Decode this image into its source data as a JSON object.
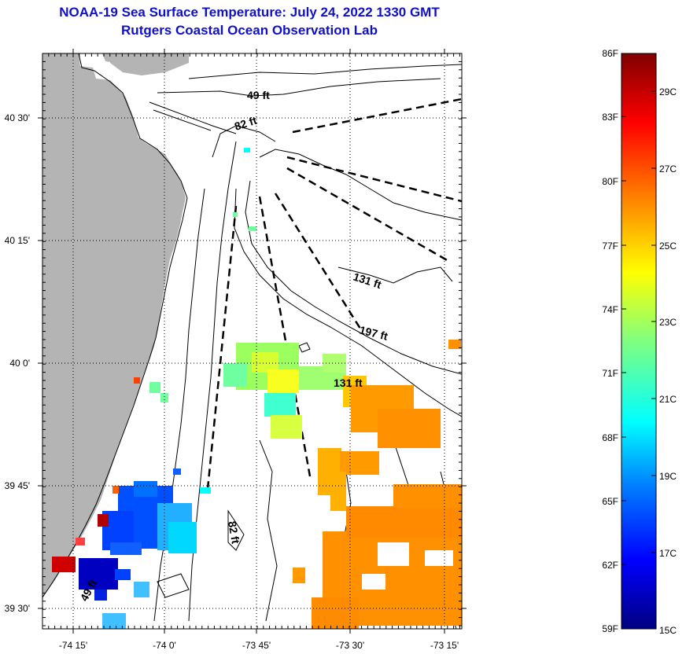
{
  "title": {
    "line1": "NOAA-19 Sea Surface Temperature:  July 24, 2022 1330 GMT",
    "line2": "Rutgers Coastal Ocean Observation Lab"
  },
  "map": {
    "lon_ticks": [
      "-74 15'",
      "-74 0'",
      "-73 45'",
      "-73 30'",
      "-73 15'"
    ],
    "lat_ticks": [
      "40 30'",
      "40 15'",
      "40 0'",
      "39 45'",
      "39 30'"
    ],
    "depth_labels": [
      "49 ft",
      "82 ft",
      "131 ft",
      "197 ft",
      "131 ft",
      "82 ft",
      "49 ft"
    ],
    "colors": {
      "land": "#b4b4b4",
      "water": "#ffffff",
      "coast": "#000000",
      "grid": "#000000"
    }
  },
  "colorbar": {
    "f_labels": [
      "86F",
      "83F",
      "80F",
      "77F",
      "74F",
      "71F",
      "68F",
      "65F",
      "62F",
      "59F"
    ],
    "c_labels": [
      "29C",
      "27C",
      "25C",
      "23C",
      "21C",
      "19C",
      "17C",
      "15C"
    ],
    "min_c": 15,
    "max_c": 30
  }
}
